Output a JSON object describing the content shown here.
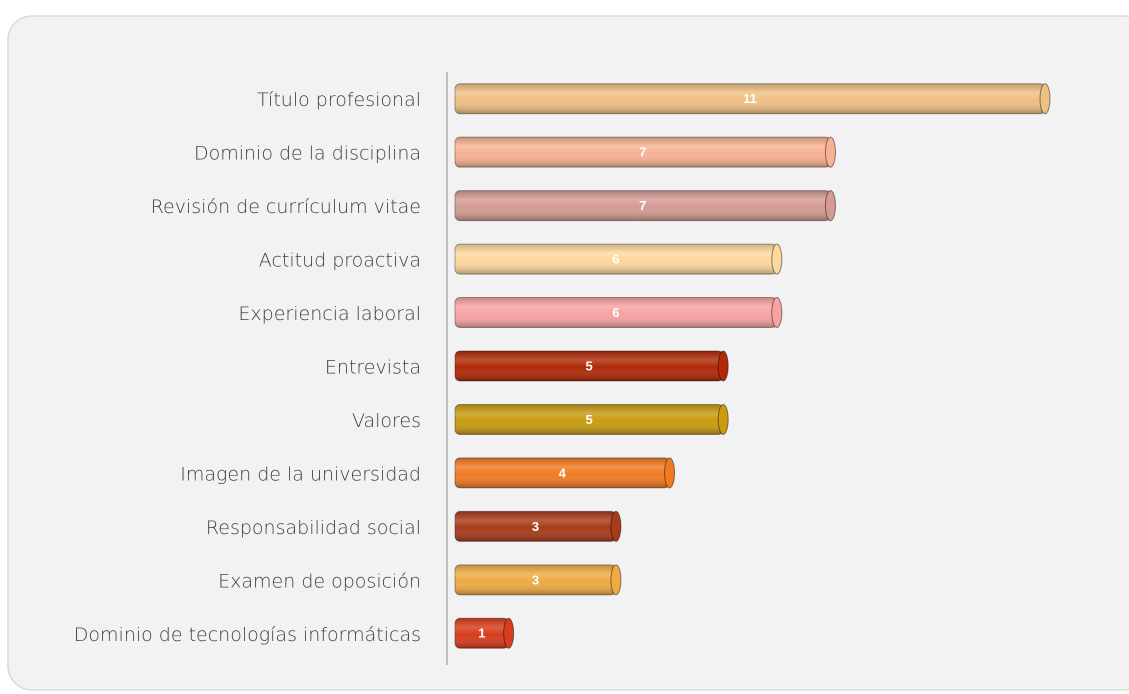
{
  "chart_data": {
    "type": "barh",
    "categories": [
      "Título profesional",
      "Dominio de la disciplina",
      "Revisión de currículum vitae",
      "Actitud proactiva",
      "Experiencia laboral",
      "Entrevista",
      "Valores",
      "Imagen de la universidad",
      "Responsabilidad social",
      "Examen de oposición",
      "Dominio de tecnologías informáticas"
    ],
    "values": [
      11,
      7,
      7,
      6,
      6,
      5,
      5,
      4,
      3,
      3,
      1
    ],
    "colors": [
      "#efc083",
      "#f8b194",
      "#d49a93",
      "#fdd89d",
      "#f7a3a3",
      "#b02a08",
      "#c99b10",
      "#f07a22",
      "#a83b1b",
      "#f0aa44",
      "#d83c1c"
    ]
  }
}
